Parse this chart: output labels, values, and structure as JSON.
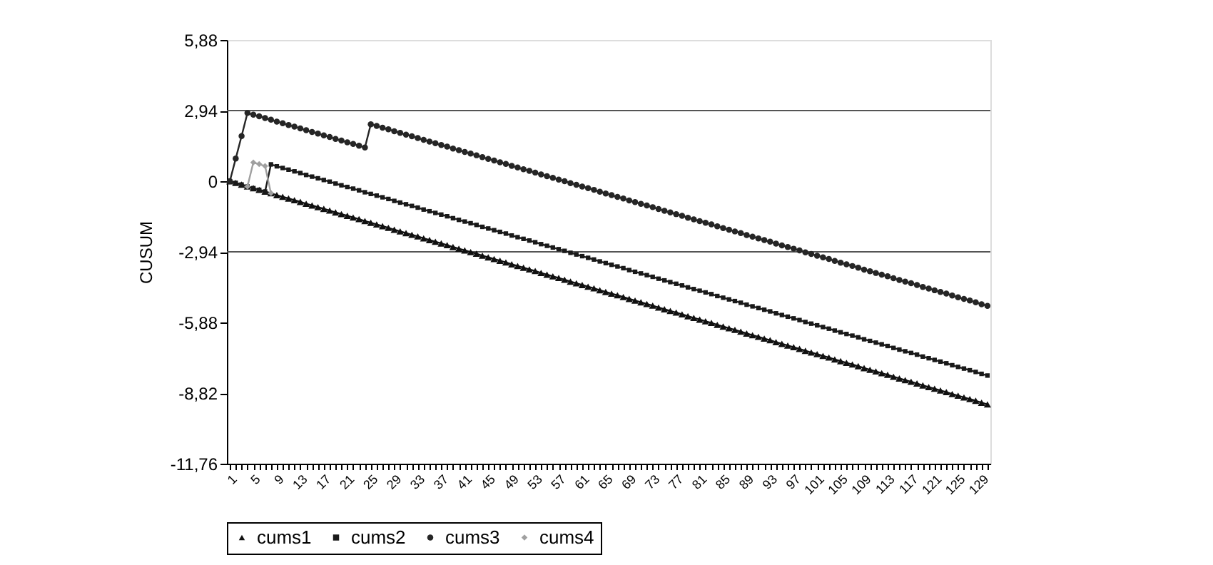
{
  "chart_data": {
    "type": "line",
    "ylabel": "CUSUM",
    "categories": [
      "1",
      null,
      null,
      null,
      "5",
      null,
      null,
      null,
      "9",
      null,
      null,
      null,
      "13",
      null,
      null,
      null,
      "17",
      null,
      null,
      null,
      "21",
      null,
      null,
      null,
      "25",
      null,
      null,
      null,
      "29",
      null,
      null,
      null,
      "33",
      null,
      null,
      null,
      "37",
      null,
      null,
      null,
      "41",
      null,
      null,
      null,
      "45",
      null,
      null,
      null,
      "49",
      null,
      null,
      null,
      "53",
      null,
      null,
      null,
      "57",
      null,
      null,
      null,
      "61",
      null,
      null,
      null,
      "65",
      null,
      null,
      null,
      "69",
      null,
      null,
      null,
      "73",
      null,
      null,
      null,
      "77",
      null,
      null,
      null,
      "81",
      null,
      null,
      null,
      "85",
      null,
      null,
      null,
      "89",
      null,
      null,
      null,
      "93",
      null,
      null,
      null,
      "97",
      null,
      null,
      null,
      "101",
      null,
      null,
      null,
      "105",
      null,
      null,
      null,
      "109",
      null,
      null,
      null,
      "113",
      null,
      null,
      null,
      "117",
      null,
      null,
      null,
      "121",
      null,
      null,
      null,
      "125",
      null,
      null,
      null,
      "129",
      null
    ],
    "series": [
      {
        "name": "cums1",
        "color": "#111111",
        "marker": "triangle",
        "values": [
          0,
          -0.07,
          -0.14,
          -0.22,
          -0.29,
          -0.36,
          -0.43,
          -0.5,
          -0.58,
          -0.65,
          -0.72,
          -0.79,
          -0.86,
          -0.94,
          -1.01,
          -1.08,
          -1.15,
          -1.22,
          -1.3,
          -1.37,
          -1.44,
          -1.51,
          -1.58,
          -1.66,
          -1.73,
          -1.8,
          -1.87,
          -1.94,
          -2.02,
          -2.09,
          -2.16,
          -2.23,
          -2.3,
          -2.38,
          -2.45,
          -2.52,
          -2.59,
          -2.66,
          -2.74,
          -2.81,
          -2.88,
          -2.95,
          -3.02,
          -3.1,
          -3.17,
          -3.24,
          -3.31,
          -3.38,
          -3.46,
          -3.53,
          -3.6,
          -3.67,
          -3.74,
          -3.82,
          -3.89,
          -3.96,
          -4.03,
          -4.1,
          -4.18,
          -4.25,
          -4.32,
          -4.39,
          -4.46,
          -4.54,
          -4.61,
          -4.68,
          -4.75,
          -4.82,
          -4.9,
          -4.97,
          -5.04,
          -5.11,
          -5.18,
          -5.26,
          -5.33,
          -5.4,
          -5.47,
          -5.54,
          -5.62,
          -5.69,
          -5.76,
          -5.83,
          -5.9,
          -5.98,
          -6.05,
          -6.12,
          -6.19,
          -6.26,
          -6.34,
          -6.41,
          -6.48,
          -6.55,
          -6.62,
          -6.7,
          -6.77,
          -6.84,
          -6.91,
          -6.98,
          -7.06,
          -7.13,
          -7.2,
          -7.27,
          -7.34,
          -7.42,
          -7.49,
          -7.56,
          -7.63,
          -7.7,
          -7.78,
          -7.85,
          -7.92,
          -7.99,
          -8.06,
          -8.14,
          -8.21,
          -8.28,
          -8.35,
          -8.42,
          -8.5,
          -8.57,
          -8.64,
          -8.71,
          -8.78,
          -8.86,
          -8.93,
          -9.0,
          -9.07,
          -9.14,
          -9.22,
          -9.29
        ]
      },
      {
        "name": "cums2",
        "color": "#1a1a1a",
        "marker": "square",
        "values": [
          0,
          -0.07,
          -0.14,
          -0.22,
          -0.29,
          -0.36,
          -0.43,
          0.7,
          0.62,
          0.55,
          0.48,
          0.41,
          0.34,
          0.26,
          0.19,
          0.12,
          0.05,
          -0.02,
          -0.1,
          -0.17,
          -0.24,
          -0.31,
          -0.38,
          -0.46,
          -0.53,
          -0.6,
          -0.67,
          -0.74,
          -0.82,
          -0.89,
          -0.96,
          -1.03,
          -1.1,
          -1.18,
          -1.25,
          -1.32,
          -1.39,
          -1.46,
          -1.54,
          -1.61,
          -1.68,
          -1.75,
          -1.82,
          -1.9,
          -1.97,
          -2.04,
          -2.11,
          -2.18,
          -2.26,
          -2.33,
          -2.4,
          -2.47,
          -2.54,
          -2.62,
          -2.69,
          -2.76,
          -2.83,
          -2.9,
          -2.98,
          -3.05,
          -3.12,
          -3.19,
          -3.26,
          -3.34,
          -3.41,
          -3.48,
          -3.55,
          -3.62,
          -3.7,
          -3.77,
          -3.84,
          -3.91,
          -3.98,
          -4.06,
          -4.13,
          -4.2,
          -4.27,
          -4.34,
          -4.42,
          -4.49,
          -4.56,
          -4.63,
          -4.7,
          -4.78,
          -4.85,
          -4.92,
          -4.99,
          -5.06,
          -5.14,
          -5.21,
          -5.28,
          -5.35,
          -5.42,
          -5.5,
          -5.57,
          -5.64,
          -5.71,
          -5.78,
          -5.86,
          -5.93,
          -6.0,
          -6.07,
          -6.14,
          -6.22,
          -6.29,
          -6.36,
          -6.43,
          -6.5,
          -6.58,
          -6.65,
          -6.72,
          -6.79,
          -6.86,
          -6.94,
          -7.01,
          -7.08,
          -7.15,
          -7.22,
          -7.3,
          -7.37,
          -7.44,
          -7.51,
          -7.58,
          -7.66,
          -7.73,
          -7.8,
          -7.87,
          -7.94,
          -8.02,
          -8.09
        ]
      },
      {
        "name": "cums3",
        "color": "#262626",
        "marker": "circle",
        "values": [
          0,
          0.94,
          1.88,
          2.84,
          2.77,
          2.7,
          2.63,
          2.56,
          2.48,
          2.41,
          2.34,
          2.27,
          2.2,
          2.12,
          2.05,
          1.98,
          1.91,
          1.84,
          1.76,
          1.69,
          1.62,
          1.55,
          1.48,
          1.4,
          2.37,
          2.3,
          2.23,
          2.16,
          2.08,
          2.01,
          1.94,
          1.87,
          1.8,
          1.72,
          1.65,
          1.58,
          1.51,
          1.44,
          1.36,
          1.29,
          1.22,
          1.15,
          1.08,
          1.0,
          0.93,
          0.86,
          0.79,
          0.72,
          0.64,
          0.57,
          0.5,
          0.43,
          0.36,
          0.28,
          0.21,
          0.14,
          0.07,
          0.0,
          -0.08,
          -0.15,
          -0.22,
          -0.29,
          -0.36,
          -0.44,
          -0.51,
          -0.58,
          -0.65,
          -0.72,
          -0.8,
          -0.87,
          -0.94,
          -1.01,
          -1.08,
          -1.16,
          -1.23,
          -1.3,
          -1.37,
          -1.44,
          -1.52,
          -1.59,
          -1.66,
          -1.73,
          -1.8,
          -1.88,
          -1.95,
          -2.02,
          -2.09,
          -2.16,
          -2.24,
          -2.31,
          -2.38,
          -2.45,
          -2.52,
          -2.6,
          -2.67,
          -2.74,
          -2.81,
          -2.88,
          -2.96,
          -3.03,
          -3.1,
          -3.17,
          -3.24,
          -3.32,
          -3.39,
          -3.46,
          -3.53,
          -3.6,
          -3.68,
          -3.75,
          -3.82,
          -3.89,
          -3.96,
          -4.04,
          -4.11,
          -4.18,
          -4.25,
          -4.32,
          -4.4,
          -4.47,
          -4.54,
          -4.61,
          -4.68,
          -4.76,
          -4.83,
          -4.9,
          -4.97,
          -5.04,
          -5.12,
          -5.19
        ]
      },
      {
        "name": "cums4",
        "color": "#a0a0a0",
        "marker": "diamond",
        "values": [
          null,
          null,
          null,
          -0.22,
          0.78,
          0.71,
          0.63,
          -0.5,
          null,
          null,
          null,
          null,
          null,
          null,
          null,
          null,
          null,
          null,
          null,
          null,
          null,
          null,
          null,
          null,
          null,
          null,
          null,
          null,
          null,
          null,
          null,
          null,
          null,
          null,
          null,
          null,
          null,
          null,
          null,
          null,
          null,
          null,
          null,
          null,
          null,
          null,
          null,
          null,
          null,
          null,
          null,
          null,
          null,
          null,
          null,
          null,
          null,
          null,
          null,
          null,
          null,
          null,
          null,
          null,
          null,
          null,
          null,
          null,
          null,
          null,
          null,
          null,
          null,
          null,
          null,
          null,
          null,
          null,
          null,
          null,
          null,
          null,
          null,
          null,
          null,
          null,
          null,
          null,
          null,
          null,
          null,
          null,
          null,
          null,
          null,
          null,
          null,
          null,
          null,
          null,
          null,
          null,
          null,
          null,
          null,
          null,
          null,
          null,
          null,
          null,
          null,
          null,
          null,
          null,
          null,
          null,
          null,
          null,
          null,
          null,
          null,
          null,
          null,
          null,
          null,
          null,
          null,
          null,
          null,
          null
        ]
      }
    ],
    "ylim": [
      -11.76,
      5.88
    ],
    "yticks": [
      {
        "value": 5.88,
        "label": "5,88"
      },
      {
        "value": 2.94,
        "label": "2,94"
      },
      0,
      {
        "value": -2.94,
        "label": "-2,94"
      },
      {
        "value": -5.88,
        "label": "-5,88"
      },
      {
        "value": -8.82,
        "label": "-8,82"
      },
      {
        "value": -11.76,
        "label": "-11,76"
      }
    ],
    "ref_lines": [
      {
        "axis": "y",
        "value": 2.94,
        "color": "#555555"
      },
      {
        "axis": "y",
        "value": -2.94,
        "color": "#555555"
      }
    ],
    "grid": false,
    "legend": "bottom"
  }
}
